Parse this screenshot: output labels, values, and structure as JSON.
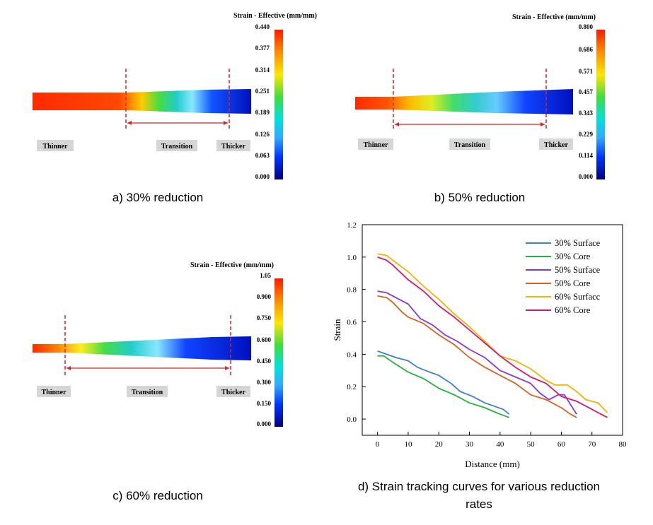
{
  "panels": [
    {
      "id": "a",
      "caption": "a) 30% reduction",
      "legend_title": "Strain - Effective (mm/mm)",
      "ticks": [
        "0.440",
        "0.377",
        "0.314",
        "0.251",
        "0.189",
        "0.126",
        "0.063",
        "0.000"
      ],
      "labels": {
        "thinner": "Thinner",
        "transition": "Transition",
        "thicker": "Thicker"
      }
    },
    {
      "id": "b",
      "caption": "b) 50% reduction",
      "legend_title": "Strain - Effective (mm/mm)",
      "ticks": [
        "0.800",
        "0.686",
        "0.571",
        "0.457",
        "0.343",
        "0.229",
        "0.114",
        "0.000"
      ],
      "labels": {
        "thinner": "Thinner",
        "transition": "Transition",
        "thicker": "Thicker"
      }
    },
    {
      "id": "c",
      "caption": "c) 60% reduction",
      "legend_title": "Strain - Effective (mm/mm)",
      "ticks": [
        "1.05",
        "0.900",
        "0.750",
        "0.600",
        "0.450",
        "0.300",
        "0.150",
        "0.000"
      ],
      "labels": {
        "thinner": "Thinner",
        "transition": "Transition",
        "thicker": "Thicker"
      }
    }
  ],
  "chart_data": {
    "type": "line",
    "caption": "d) Strain tracking curves for various reduction rates",
    "xlabel": "Distance (mm)",
    "ylabel": "Strain",
    "xlim": [
      -5,
      80
    ],
    "ylim": [
      -0.1,
      1.2
    ],
    "xticks": [
      0,
      10,
      20,
      30,
      40,
      50,
      60,
      70,
      80
    ],
    "yticks": [
      0.0,
      0.2,
      0.4,
      0.6,
      0.8,
      1.0,
      1.2
    ],
    "legend_position": "top-right",
    "series": [
      {
        "name": "30% Surface",
        "color": "#3a7fd5",
        "x": [
          0,
          3,
          6,
          10,
          13,
          17,
          20,
          24,
          27,
          31,
          35,
          38,
          41,
          43
        ],
        "y": [
          0.42,
          0.4,
          0.38,
          0.36,
          0.32,
          0.29,
          0.27,
          0.22,
          0.17,
          0.14,
          0.1,
          0.08,
          0.06,
          0.03
        ]
      },
      {
        "name": "30% Core",
        "color": "#22b33c",
        "x": [
          0,
          2,
          5,
          10,
          15,
          20,
          25,
          30,
          35,
          40,
          43
        ],
        "y": [
          0.39,
          0.39,
          0.35,
          0.29,
          0.25,
          0.19,
          0.15,
          0.1,
          0.07,
          0.03,
          0.01
        ]
      },
      {
        "name": "50% Surface",
        "color": "#8a35d5",
        "x": [
          0,
          3,
          5,
          10,
          14,
          18,
          22,
          26,
          30,
          35,
          40,
          45,
          50,
          53,
          56,
          59,
          61,
          64,
          65
        ],
        "y": [
          0.79,
          0.78,
          0.76,
          0.71,
          0.62,
          0.58,
          0.52,
          0.48,
          0.43,
          0.38,
          0.3,
          0.26,
          0.22,
          0.16,
          0.12,
          0.15,
          0.15,
          0.06,
          0.03
        ]
      },
      {
        "name": "50% Core",
        "color": "#d8621f",
        "x": [
          0,
          3,
          5,
          8,
          10,
          15,
          20,
          25,
          30,
          35,
          40,
          45,
          50,
          55,
          60,
          63,
          65
        ],
        "y": [
          0.76,
          0.75,
          0.72,
          0.66,
          0.63,
          0.59,
          0.52,
          0.46,
          0.38,
          0.32,
          0.27,
          0.22,
          0.15,
          0.12,
          0.07,
          0.03,
          0.01
        ]
      },
      {
        "name": "60% Surfacc",
        "color": "#f0b400",
        "x": [
          0,
          3,
          5,
          10,
          15,
          20,
          25,
          30,
          35,
          40,
          45,
          50,
          55,
          58,
          62,
          65,
          68,
          72,
          75
        ],
        "y": [
          1.02,
          1.01,
          0.98,
          0.91,
          0.82,
          0.74,
          0.65,
          0.57,
          0.48,
          0.39,
          0.36,
          0.31,
          0.24,
          0.21,
          0.21,
          0.17,
          0.12,
          0.1,
          0.04
        ]
      },
      {
        "name": "60% Core",
        "color": "#d4186e",
        "x": [
          0,
          3,
          5,
          10,
          15,
          20,
          25,
          30,
          35,
          40,
          45,
          50,
          55,
          60,
          65,
          68,
          72,
          75
        ],
        "y": [
          1.0,
          0.98,
          0.95,
          0.86,
          0.79,
          0.7,
          0.63,
          0.55,
          0.47,
          0.39,
          0.32,
          0.26,
          0.22,
          0.14,
          0.11,
          0.08,
          0.04,
          0.01
        ]
      }
    ]
  }
}
